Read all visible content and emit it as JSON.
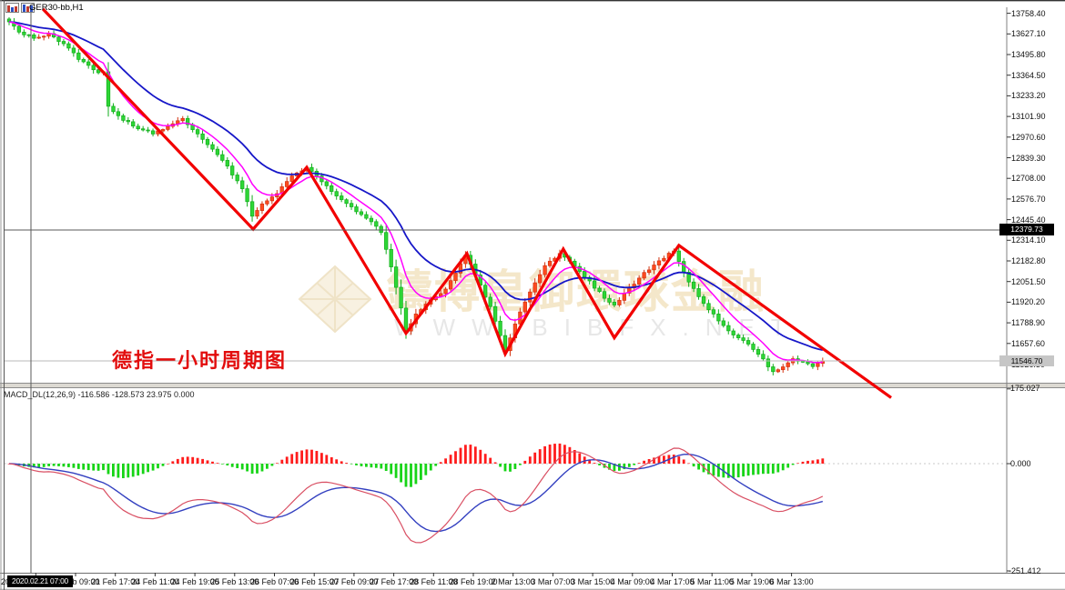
{
  "window": {
    "symbol_label": "GER30-bb,H1",
    "annotation": "德指一小时周期图",
    "watermark": {
      "cn": "鑄博皇御環球金融",
      "url": "WWW.BIBFX.NET"
    }
  },
  "crosshair": {
    "price": "12379.73",
    "time": "2020.02.21 07:00"
  },
  "price_axis": {
    "labels": [
      "13758.40",
      "13627.10",
      "13495.80",
      "13364.50",
      "13233.20",
      "13101.90",
      "12970.60",
      "12839.30",
      "12708.00",
      "12576.70",
      "12445.40",
      "12314.10",
      "12182.80",
      "12051.50",
      "11920.20",
      "11788.90",
      "11657.60",
      "11526.30"
    ],
    "current_price": "11546.70"
  },
  "time_axis": {
    "clipped_label": "20",
    "labels": [
      "21 Feb 09:00",
      "21 Feb 17:00",
      "24 Feb 11:00",
      "24 Feb 19:00",
      "25 Feb 13:00",
      "26 Feb 07:00",
      "26 Feb 15:00",
      "27 Feb 09:00",
      "27 Feb 17:00",
      "28 Feb 11:00",
      "28 Feb 19:00",
      "2 Mar 13:00",
      "3 Mar 07:00",
      "3 Mar 15:00",
      "4 Mar 09:00",
      "4 Mar 17:00",
      "5 Mar 11:00",
      "5 Mar 19:00",
      "6 Mar 13:00"
    ]
  },
  "indicator": {
    "name_label": "MACD_DL(12,26,9) -116.586 -128.573 23.975 0.000",
    "axis_labels": {
      "max": "175.027",
      "zero": "0.000",
      "min": "-251.412"
    }
  },
  "chart_data": {
    "type": "candlestick",
    "symbol": "GER30-bb",
    "timeframe": "H1",
    "bars": 165,
    "price_labels_step": 131.3,
    "visible_price_range": [
      11390,
      13800
    ],
    "close_anchors": [
      [
        0,
        13700
      ],
      [
        2,
        13640
      ],
      [
        5,
        13605
      ],
      [
        8,
        13625
      ],
      [
        11,
        13560
      ],
      [
        14,
        13470
      ],
      [
        17,
        13395
      ],
      [
        19,
        13380
      ],
      [
        20,
        13160
      ],
      [
        23,
        13080
      ],
      [
        26,
        13030
      ],
      [
        29,
        12990
      ],
      [
        32,
        13035
      ],
      [
        35,
        13090
      ],
      [
        38,
        12990
      ],
      [
        41,
        12900
      ],
      [
        44,
        12780
      ],
      [
        47,
        12640
      ],
      [
        49,
        12470
      ],
      [
        51,
        12545
      ],
      [
        54,
        12615
      ],
      [
        57,
        12730
      ],
      [
        60,
        12780
      ],
      [
        63,
        12690
      ],
      [
        66,
        12600
      ],
      [
        69,
        12520
      ],
      [
        72,
        12460
      ],
      [
        75,
        12370
      ],
      [
        77,
        12150
      ],
      [
        79,
        11880
      ],
      [
        80,
        11730
      ],
      [
        82,
        11845
      ],
      [
        85,
        11935
      ],
      [
        88,
        12005
      ],
      [
        91,
        12160
      ],
      [
        92,
        12225
      ],
      [
        94,
        12095
      ],
      [
        97,
        11890
      ],
      [
        99,
        11705
      ],
      [
        100,
        11615
      ],
      [
        102,
        11785
      ],
      [
        105,
        11985
      ],
      [
        108,
        12150
      ],
      [
        111,
        12235
      ],
      [
        114,
        12150
      ],
      [
        117,
        12050
      ],
      [
        120,
        11950
      ],
      [
        122,
        11905
      ],
      [
        125,
        12005
      ],
      [
        128,
        12105
      ],
      [
        131,
        12185
      ],
      [
        134,
        12250
      ],
      [
        136,
        12105
      ],
      [
        138,
        12000
      ],
      [
        140,
        11905
      ],
      [
        143,
        11805
      ],
      [
        146,
        11705
      ],
      [
        149,
        11660
      ],
      [
        152,
        11555
      ],
      [
        154,
        11475
      ],
      [
        156,
        11505
      ],
      [
        158,
        11560
      ],
      [
        160,
        11540
      ],
      [
        162,
        11515
      ],
      [
        164,
        11547
      ]
    ],
    "zigzag": [
      [
        6.8,
        13786
      ],
      [
        49.2,
        12385
      ],
      [
        60,
        12778
      ],
      [
        80,
        11722
      ],
      [
        92.3,
        12230
      ],
      [
        100,
        11590
      ],
      [
        111.7,
        12259
      ],
      [
        122,
        11694
      ],
      [
        135,
        12282
      ],
      [
        177.8,
        11313
      ]
    ],
    "moving_averages": [
      {
        "name": "fast",
        "period": 8
      },
      {
        "name": "slow",
        "period": 21
      }
    ],
    "macd_params": {
      "fast": 12,
      "slow": 26,
      "signal": 9
    },
    "macd_axis_range": [
      -251.412,
      175.027
    ],
    "crosshair_bar": 4.4,
    "crosshair_price": 12379.73,
    "current_price": 11546.7
  },
  "colors": {
    "bull_body": "#ff4a1f",
    "bull_border": "#d23310",
    "bear_body": "#2ed636",
    "bear_border": "#12ae1c",
    "ma_fast": "#ff00ff",
    "ma_slow": "#1616c8",
    "zigzag": "#f20000",
    "hist_pos": "#ff1c1c",
    "hist_neg": "#17d417",
    "macd_line": "#d94f63",
    "signal_line": "#3340c0",
    "crosshair": "#5a5a5a",
    "current_price_line": "#b9b9b9",
    "watermark_text": "#f4e7ca",
    "watermark_url": "#e7e7e7",
    "annotation": "#e20d0d",
    "axis_text": "#111111"
  }
}
